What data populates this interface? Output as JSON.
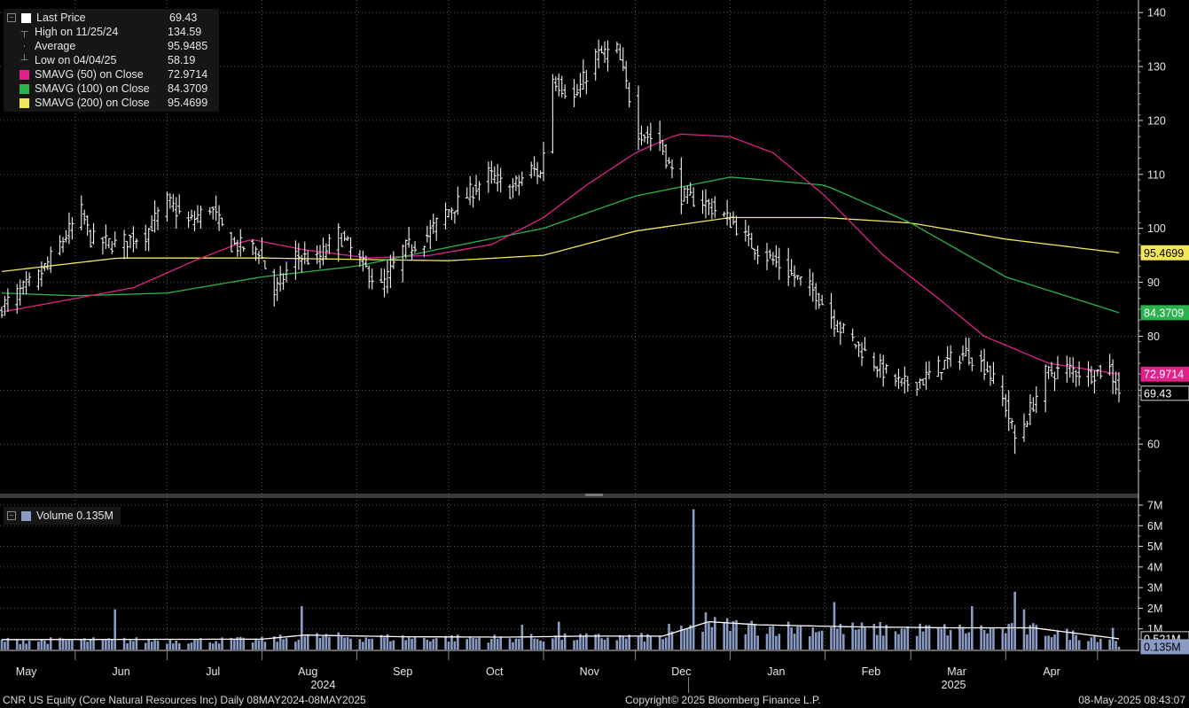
{
  "chart_data": {
    "type": "line",
    "ticker_line": "CNR US Equity (Core Natural Resources Inc)   Daily 08MAY2024-08MAY2025",
    "copyright": "Copyright© 2025 Bloomberg Finance L.P.",
    "timestamp": "08-May-2025 08:43:07",
    "x_range": [
      "2024-05-08",
      "2025-05-08"
    ],
    "months": [
      {
        "label": "May",
        "date": "2024-05-01"
      },
      {
        "label": "Jun",
        "date": "2024-06-01"
      },
      {
        "label": "Jul",
        "date": "2024-07-01"
      },
      {
        "label": "Aug",
        "date": "2024-08-01"
      },
      {
        "label": "Sep",
        "date": "2024-09-01"
      },
      {
        "label": "Oct",
        "date": "2024-10-01"
      },
      {
        "label": "Nov",
        "date": "2024-11-01"
      },
      {
        "label": "Dec",
        "date": "2024-12-01"
      },
      {
        "label": "Jan",
        "date": "2025-01-01"
      },
      {
        "label": "Feb",
        "date": "2025-02-01"
      },
      {
        "label": "Mar",
        "date": "2025-03-01"
      },
      {
        "label": "Apr",
        "date": "2025-04-01"
      }
    ],
    "years": [
      "2024",
      "2025"
    ],
    "price_axis": {
      "ylim": [
        51,
        142
      ],
      "ticks": [
        60,
        70,
        80,
        90,
        100,
        110,
        120,
        130,
        140
      ]
    },
    "volume_axis": {
      "ylim": [
        0,
        7300000
      ],
      "ticks": [
        1000000,
        2000000,
        3000000,
        4000000,
        5000000,
        6000000,
        7000000
      ],
      "tick_labels": [
        "1M",
        "2M",
        "3M",
        "4M",
        "5M",
        "6M",
        "7M"
      ]
    },
    "legend": [
      {
        "name": "Last Price",
        "value": "69.43",
        "color": "#ffffff",
        "glyph": "square"
      },
      {
        "name": "High on 11/25/24",
        "value": "134.59",
        "color": "#9a9a9a",
        "glyph": "high"
      },
      {
        "name": "Average",
        "value": "95.9485",
        "color": "#9a9a9a",
        "glyph": "avg"
      },
      {
        "name": "Low on 04/04/25",
        "value": "58.19",
        "color": "#9a9a9a",
        "glyph": "low"
      },
      {
        "name": "SMAVG (50)  on Close",
        "value": "72.9714",
        "color": "#e0218a",
        "glyph": "square"
      },
      {
        "name": "SMAVG (100)  on Close",
        "value": "84.3709",
        "color": "#2bb24c",
        "glyph": "square"
      },
      {
        "name": "SMAVG (200)  on Close",
        "value": "95.4699",
        "color": "#f2e65a",
        "glyph": "square"
      }
    ],
    "volume_legend": {
      "name": "Volume",
      "value": "0.135M",
      "color": "#8a9bc4"
    },
    "price_tags": [
      {
        "label": "95.4699",
        "value": 95.4699,
        "bg": "#f2e65a",
        "fg": "#000000"
      },
      {
        "label": "84.3709",
        "value": 84.3709,
        "bg": "#2bb24c",
        "fg": "#ffffff"
      },
      {
        "label": "72.9714",
        "value": 72.9714,
        "bg": "#e0218a",
        "fg": "#ffffff"
      },
      {
        "label": "69.43",
        "value": 69.43,
        "bg": "#000000",
        "fg": "#ffffff"
      }
    ],
    "volume_tags": [
      {
        "label": "0.521M",
        "value": 521000,
        "bg": "#000000",
        "fg": "#ffffff"
      },
      {
        "label": "0.135M",
        "value": 135000,
        "bg": "#8a9bc4",
        "fg": "#000000"
      }
    ],
    "price_anchors": [
      [
        "2024-05-08",
        85.5
      ],
      [
        "2024-05-20",
        91
      ],
      [
        "2024-05-27",
        97
      ],
      [
        "2024-06-03",
        103
      ],
      [
        "2024-06-06",
        98
      ],
      [
        "2024-06-14",
        97
      ],
      [
        "2024-06-24",
        99
      ],
      [
        "2024-07-01",
        105
      ],
      [
        "2024-07-08",
        101
      ],
      [
        "2024-07-15",
        104
      ],
      [
        "2024-07-22",
        97
      ],
      [
        "2024-07-31",
        96
      ],
      [
        "2024-08-05",
        88
      ],
      [
        "2024-08-12",
        95
      ],
      [
        "2024-08-19",
        94
      ],
      [
        "2024-08-26",
        99
      ],
      [
        "2024-09-03",
        93
      ],
      [
        "2024-09-09",
        89
      ],
      [
        "2024-09-16",
        96
      ],
      [
        "2024-09-23",
        98
      ],
      [
        "2024-09-30",
        103
      ],
      [
        "2024-10-07",
        106
      ],
      [
        "2024-10-14",
        110
      ],
      [
        "2024-10-21",
        107
      ],
      [
        "2024-10-28",
        111
      ],
      [
        "2024-10-31",
        110
      ],
      [
        "2024-11-04",
        128
      ],
      [
        "2024-11-11",
        124
      ],
      [
        "2024-11-18",
        132
      ],
      [
        "2024-11-25",
        133
      ],
      [
        "2024-12-02",
        118
      ],
      [
        "2024-12-09",
        116
      ],
      [
        "2024-12-16",
        106
      ],
      [
        "2024-12-23",
        105
      ],
      [
        "2025-01-02",
        101
      ],
      [
        "2025-01-08",
        97
      ],
      [
        "2025-01-15",
        94
      ],
      [
        "2025-01-22",
        91
      ],
      [
        "2025-01-29",
        88
      ],
      [
        "2025-02-05",
        82
      ],
      [
        "2025-02-12",
        78
      ],
      [
        "2025-02-19",
        74
      ],
      [
        "2025-02-26",
        71
      ],
      [
        "2025-03-05",
        72
      ],
      [
        "2025-03-12",
        75
      ],
      [
        "2025-03-19",
        77
      ],
      [
        "2025-03-26",
        74
      ],
      [
        "2025-04-01",
        67
      ],
      [
        "2025-04-04",
        61
      ],
      [
        "2025-04-08",
        65
      ],
      [
        "2025-04-14",
        73
      ],
      [
        "2025-04-21",
        74
      ],
      [
        "2025-04-28",
        73
      ],
      [
        "2025-05-05",
        74
      ],
      [
        "2025-05-08",
        69.43
      ]
    ],
    "price_summary": {
      "high": {
        "date": "2024-11-25",
        "value": 134.59
      },
      "low": {
        "date": "2025-04-04",
        "value": 58.19
      }
    },
    "sma50": [
      [
        "2024-05-08",
        84.5
      ],
      [
        "2024-06-01",
        87
      ],
      [
        "2024-06-20",
        89
      ],
      [
        "2024-07-10",
        94
      ],
      [
        "2024-07-28",
        98
      ],
      [
        "2024-08-15",
        96
      ],
      [
        "2024-09-05",
        94.5
      ],
      [
        "2024-09-25",
        95
      ],
      [
        "2024-10-15",
        97
      ],
      [
        "2024-11-01",
        102
      ],
      [
        "2024-11-15",
        108
      ],
      [
        "2024-12-01",
        114
      ],
      [
        "2024-12-15",
        117.5
      ],
      [
        "2025-01-01",
        117
      ],
      [
        "2025-01-15",
        114
      ],
      [
        "2025-02-01",
        106
      ],
      [
        "2025-02-20",
        95
      ],
      [
        "2025-03-10",
        87
      ],
      [
        "2025-03-25",
        80
      ],
      [
        "2025-04-15",
        75
      ],
      [
        "2025-05-08",
        72.97
      ]
    ],
    "sma100": [
      [
        "2024-05-08",
        88
      ],
      [
        "2024-06-01",
        87.5
      ],
      [
        "2024-07-01",
        88
      ],
      [
        "2024-08-01",
        91
      ],
      [
        "2024-09-01",
        93
      ],
      [
        "2024-10-01",
        96.5
      ],
      [
        "2024-11-01",
        100
      ],
      [
        "2024-12-01",
        106
      ],
      [
        "2025-01-01",
        109.5
      ],
      [
        "2025-02-01",
        108
      ],
      [
        "2025-03-01",
        101
      ],
      [
        "2025-04-01",
        91
      ],
      [
        "2025-05-08",
        84.37
      ]
    ],
    "sma200": [
      [
        "2024-05-08",
        92
      ],
      [
        "2024-06-15",
        94.5
      ],
      [
        "2024-08-01",
        94.5
      ],
      [
        "2024-10-01",
        94
      ],
      [
        "2024-11-01",
        95
      ],
      [
        "2024-12-01",
        99.5
      ],
      [
        "2025-01-01",
        102
      ],
      [
        "2025-02-01",
        102
      ],
      [
        "2025-03-01",
        101
      ],
      [
        "2025-04-01",
        98
      ],
      [
        "2025-05-08",
        95.47
      ]
    ],
    "volume_spikes": [
      [
        "2024-06-14",
        1950000
      ],
      [
        "2024-08-14",
        2100000
      ],
      [
        "2024-10-25",
        1200000
      ],
      [
        "2024-11-06",
        1350000
      ],
      [
        "2024-12-12",
        1250000
      ],
      [
        "2024-12-20",
        6800000
      ],
      [
        "2024-12-24",
        1800000
      ],
      [
        "2025-02-04",
        2300000
      ],
      [
        "2025-03-21",
        2100000
      ],
      [
        "2025-04-04",
        2800000
      ],
      [
        "2025-04-07",
        1950000
      ],
      [
        "2025-05-06",
        1050000
      ]
    ],
    "volume_avg": [
      [
        "2024-05-08",
        480000
      ],
      [
        "2024-08-01",
        500000
      ],
      [
        "2024-08-15",
        700000
      ],
      [
        "2024-09-15",
        620000
      ],
      [
        "2024-10-20",
        600000
      ],
      [
        "2024-11-15",
        650000
      ],
      [
        "2024-12-10",
        650000
      ],
      [
        "2024-12-25",
        1350000
      ],
      [
        "2025-01-10",
        1200000
      ],
      [
        "2025-02-10",
        1100000
      ],
      [
        "2025-03-15",
        1050000
      ],
      [
        "2025-04-10",
        1050000
      ],
      [
        "2025-05-08",
        521000
      ]
    ]
  }
}
